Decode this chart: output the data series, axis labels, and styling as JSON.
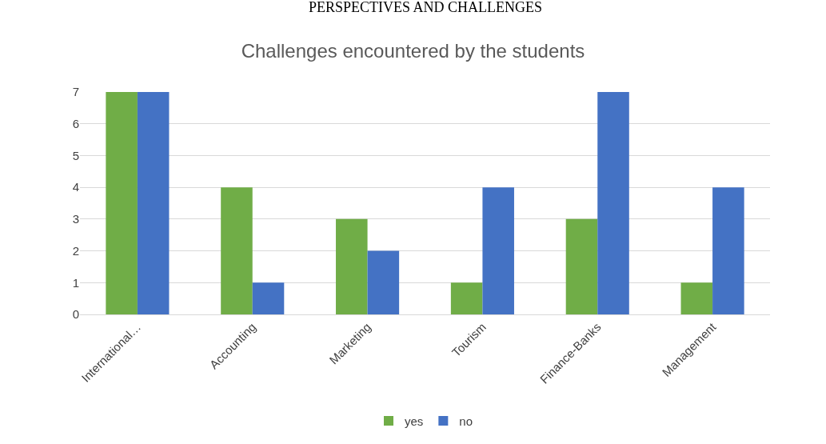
{
  "chart_data": {
    "type": "bar",
    "title": "Challenges encountered by the students",
    "annotations": [
      "PERSPECTIVES AND CHALLENGES"
    ],
    "categories": [
      "International…",
      "Accounting",
      "Marketing",
      "Tourism",
      "Finance-Banks",
      "Management"
    ],
    "series": [
      {
        "name": "yes",
        "color": "#70ad47",
        "values": [
          7,
          4,
          3,
          1,
          3,
          1
        ]
      },
      {
        "name": "no",
        "color": "#4472c4",
        "values": [
          7,
          1,
          2,
          4,
          7,
          4
        ]
      }
    ],
    "ylim": [
      0,
      7
    ],
    "yticks": [
      0,
      1,
      2,
      3,
      4,
      5,
      6,
      7
    ],
    "grid": "y",
    "legend": "bottom"
  }
}
